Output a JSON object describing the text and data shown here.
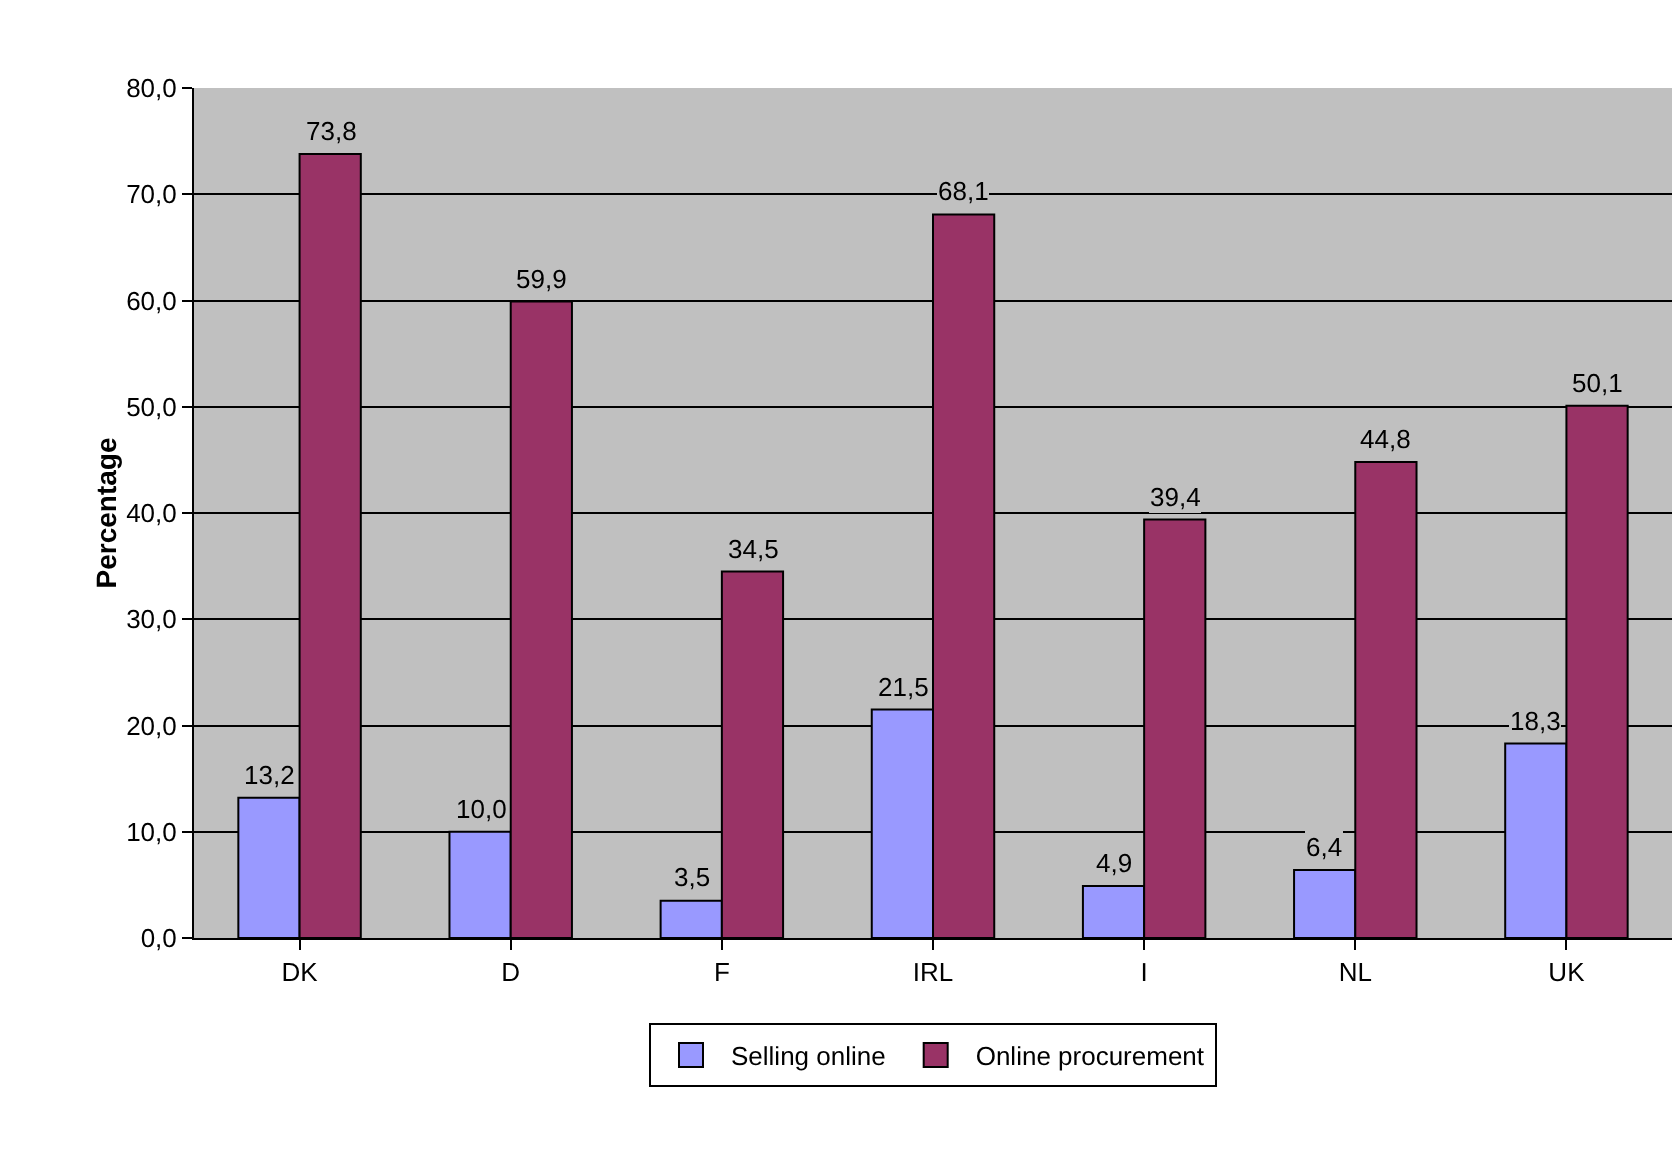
{
  "chart_data": {
    "type": "bar",
    "ylabel": "Percentage",
    "categories": [
      "DK",
      "D",
      "F",
      "IRL",
      "I",
      "NL",
      "UK"
    ],
    "series": [
      {
        "name": "Selling online",
        "color": "#9999ff",
        "values": [
          13.2,
          10.0,
          3.5,
          21.5,
          4.9,
          6.4,
          18.3
        ],
        "value_labels": [
          "13,2",
          "10,0",
          "3,5",
          "21,5",
          "4,9",
          "6,4",
          "18,3"
        ]
      },
      {
        "name": "Online procurement",
        "color": "#993366",
        "values": [
          73.8,
          59.9,
          34.5,
          68.1,
          39.4,
          44.8,
          50.1
        ],
        "value_labels": [
          "73,8",
          "59,9",
          "34,5",
          "68,1",
          "39,4",
          "44,8",
          "50,1"
        ]
      }
    ],
    "ylim": [
      0,
      80
    ],
    "yticks": [
      {
        "value": 0,
        "label": "0,0"
      },
      {
        "value": 10,
        "label": "10,0"
      },
      {
        "value": 20,
        "label": "20,0"
      },
      {
        "value": 30,
        "label": "30,0"
      },
      {
        "value": 40,
        "label": "40,0"
      },
      {
        "value": 50,
        "label": "50,0"
      },
      {
        "value": 60,
        "label": "60,0"
      },
      {
        "value": 70,
        "label": "70,0"
      },
      {
        "value": 80,
        "label": "80,0"
      }
    ],
    "grid": "y",
    "legend": "bottom"
  }
}
